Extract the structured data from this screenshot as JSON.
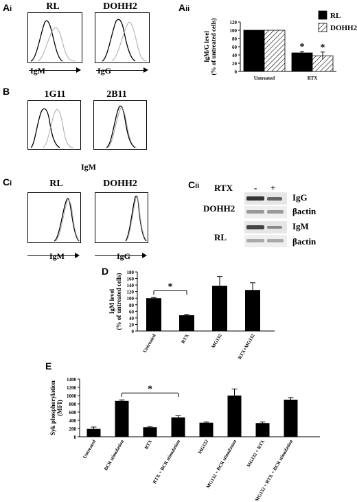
{
  "panels": {
    "ai": {
      "label": "A",
      "sub": "i",
      "titles": [
        "RL",
        "DOHH2"
      ],
      "xlabels": [
        "IgM",
        "IgG"
      ]
    },
    "aii": {
      "label": "A",
      "sub": "ii"
    },
    "b": {
      "label": "B",
      "titles": [
        "1G11",
        "2B11"
      ],
      "xlabel": "IgM"
    },
    "ci": {
      "label": "C",
      "sub": "i",
      "titles": [
        "RL",
        "DOHH2"
      ],
      "xlabels": [
        "IgM",
        "IgG"
      ]
    },
    "cii": {
      "label": "C",
      "sub": "ii",
      "treatment": "RTX",
      "lanes": [
        "-",
        "+"
      ],
      "row_groups": [
        "DOHH2",
        "RL"
      ],
      "blots": [
        "IgG",
        "βactin",
        "IgM",
        "βactin"
      ]
    },
    "d": {
      "label": "D"
    },
    "e": {
      "label": "E"
    }
  },
  "chart_data": [
    {
      "id": "Aii",
      "type": "bar",
      "categories": [
        "Untreated",
        "RTX"
      ],
      "series": [
        {
          "name": "RL",
          "values": [
            100,
            45
          ],
          "errors": [
            0,
            3
          ],
          "color": "#000000"
        },
        {
          "name": "DOHH2",
          "values": [
            100,
            38
          ],
          "errors": [
            0,
            9
          ],
          "color": "hatched"
        }
      ],
      "ylabel": "IgM/G level\n(% of untreated cells)",
      "ylim": [
        0,
        120
      ],
      "yticks": [
        0,
        20,
        40,
        60,
        80,
        100,
        120
      ],
      "significance": "*",
      "legend": "top-right"
    },
    {
      "id": "D",
      "type": "bar",
      "categories": [
        "Untreated",
        "RTX",
        "MG132",
        "RTX+MG132"
      ],
      "values": [
        100,
        48,
        138,
        125
      ],
      "errors": [
        2,
        3,
        28,
        22
      ],
      "ylabel": "IgM level\n(% of untreated cells)",
      "ylim": [
        0,
        180
      ],
      "yticks": [
        0,
        20,
        40,
        60,
        80,
        100,
        120,
        140,
        160,
        180
      ],
      "significance": "*",
      "bracket": [
        "Untreated",
        "RTX"
      ]
    },
    {
      "id": "E",
      "type": "bar",
      "categories": [
        "Untreated",
        "BCR stimulation",
        "RTX",
        "RTX + BCR stimulation",
        "MG132",
        "MG132 + BCR stimulation",
        "MG132 + RTX",
        "MG132 + RTX + BCR stimulation"
      ],
      "values": [
        190,
        870,
        230,
        470,
        340,
        1000,
        330,
        900
      ],
      "errors": [
        45,
        25,
        20,
        40,
        20,
        160,
        30,
        50
      ],
      "ylabel": "Syk phosphorylation\n(MFI)",
      "ylim": [
        0,
        1400
      ],
      "yticks": [
        0,
        200,
        400,
        600,
        800,
        1000,
        1200,
        1400
      ],
      "significance": "*",
      "bracket": [
        "BCR stimulation",
        "RTX + BCR stimulation"
      ]
    }
  ]
}
